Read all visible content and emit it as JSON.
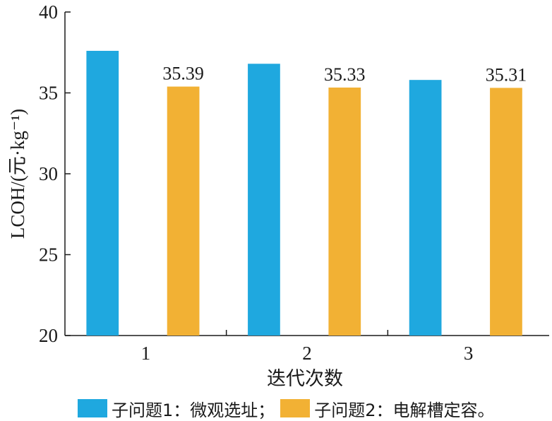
{
  "chart_data": {
    "type": "bar",
    "categories": [
      "1",
      "2",
      "3"
    ],
    "series": [
      {
        "name": "子问题1：微观选址；",
        "color": "#1fa8df",
        "values": [
          37.6,
          36.8,
          35.8
        ],
        "labels": [
          "",
          "",
          ""
        ]
      },
      {
        "name": "子问题2：电解槽定容。",
        "color": "#f2b134",
        "values": [
          35.39,
          35.33,
          35.31
        ],
        "labels": [
          "35.39",
          "35.33",
          "35.31"
        ]
      }
    ],
    "xlabel": "迭代次数",
    "ylabel": "LCOH/(元·kg⁻¹)",
    "ylim": [
      20,
      40
    ],
    "yticks": [
      "20",
      "25",
      "30",
      "35",
      "40"
    ],
    "grid": false,
    "legend_position": "bottom"
  }
}
